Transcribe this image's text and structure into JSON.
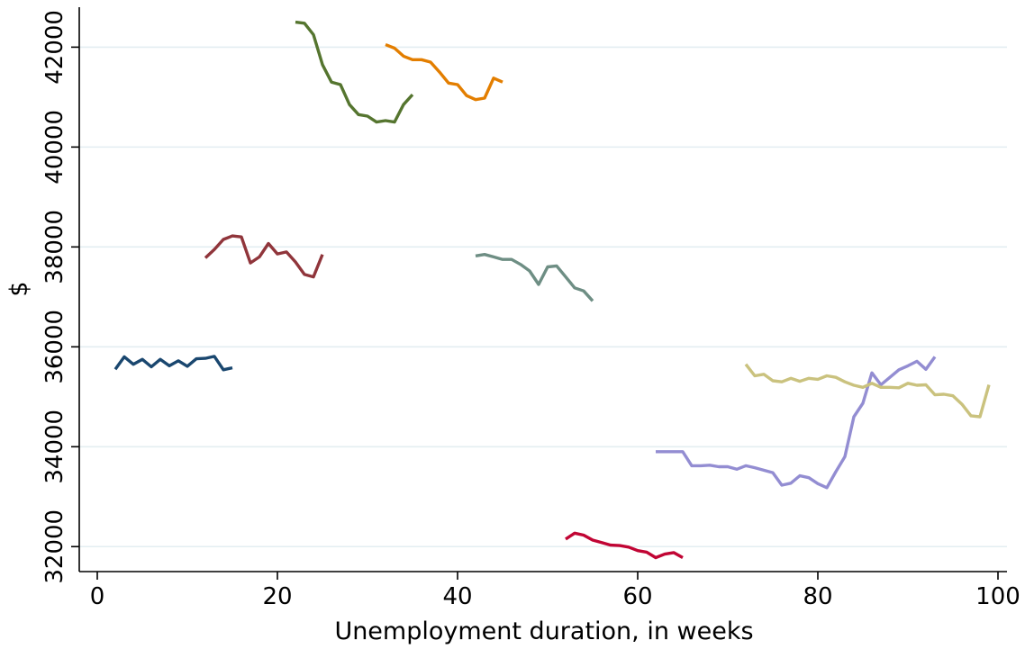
{
  "chart_data": {
    "type": "line",
    "title": "",
    "xlabel": "Unemployment duration, in weeks",
    "ylabel": "$",
    "xlim": [
      -2,
      101
    ],
    "ylim": [
      31500,
      42800
    ],
    "x_ticks": [
      0,
      20,
      40,
      60,
      80,
      100
    ],
    "y_ticks": [
      32000,
      34000,
      36000,
      38000,
      40000,
      42000
    ],
    "grid": true,
    "legend": "none",
    "series": [
      {
        "color": "#1a476f",
        "x": [
          2,
          3,
          4,
          5,
          6,
          7,
          8,
          9,
          10,
          11,
          12,
          13,
          14,
          15
        ],
        "y": [
          35550,
          35800,
          35650,
          35750,
          35600,
          35750,
          35620,
          35720,
          35610,
          35760,
          35770,
          35810,
          35540,
          35580
        ]
      },
      {
        "color": "#90353b",
        "x": [
          12,
          13,
          14,
          15,
          16,
          17,
          18,
          19,
          20,
          21,
          22,
          23,
          24,
          25
        ],
        "y": [
          37780,
          37950,
          38150,
          38220,
          38200,
          37680,
          37800,
          38070,
          37860,
          37900,
          37700,
          37450,
          37400,
          37850
        ]
      },
      {
        "color": "#55752f",
        "x": [
          22,
          23,
          24,
          25,
          26,
          27,
          28,
          29,
          30,
          31,
          32,
          33,
          34,
          35
        ],
        "y": [
          42500,
          42480,
          42250,
          41650,
          41300,
          41250,
          40850,
          40650,
          40620,
          40500,
          40530,
          40500,
          40850,
          41050
        ]
      },
      {
        "color": "#e37e00",
        "x": [
          32,
          33,
          34,
          35,
          36,
          37,
          38,
          39,
          40,
          41,
          42,
          43,
          44,
          45
        ],
        "y": [
          42050,
          41980,
          41820,
          41750,
          41750,
          41700,
          41500,
          41280,
          41250,
          41030,
          40950,
          40980,
          41380,
          41300
        ]
      },
      {
        "color": "#6e8e84",
        "x": [
          42,
          43,
          44,
          45,
          46,
          47,
          48,
          49,
          50,
          51,
          52,
          53,
          54,
          55
        ],
        "y": [
          37820,
          37850,
          37800,
          37750,
          37750,
          37650,
          37520,
          37250,
          37600,
          37620,
          37400,
          37180,
          37120,
          36920
        ]
      },
      {
        "color": "#c10534",
        "x": [
          52,
          53,
          54,
          55,
          56,
          57,
          58,
          59,
          60,
          61,
          62,
          63,
          64,
          65
        ],
        "y": [
          32150,
          32270,
          32230,
          32130,
          32080,
          32030,
          32020,
          31990,
          31920,
          31890,
          31780,
          31850,
          31880,
          31780
        ]
      },
      {
        "color": "#938dd2",
        "x": [
          62,
          63,
          64,
          65,
          66,
          67,
          68,
          69,
          70,
          71,
          72,
          73,
          74,
          75,
          76,
          77,
          78,
          79,
          80,
          81,
          82,
          83,
          84,
          85,
          86,
          87,
          88,
          89,
          90,
          91,
          92,
          93
        ],
        "y": [
          33900,
          33900,
          33900,
          33900,
          33620,
          33620,
          33630,
          33600,
          33600,
          33550,
          33620,
          33580,
          33530,
          33480,
          33230,
          33270,
          33420,
          33380,
          33260,
          33180,
          33500,
          33800,
          34600,
          34870,
          35480,
          35240,
          35390,
          35540,
          35620,
          35710,
          35550,
          35800
        ]
      },
      {
        "color": "#cac27e",
        "x": [
          72,
          73,
          74,
          75,
          76,
          77,
          78,
          79,
          80,
          81,
          82,
          83,
          84,
          85,
          86,
          87,
          88,
          89,
          90,
          91,
          92,
          93,
          94,
          95,
          96,
          97,
          98,
          99
        ],
        "y": [
          35650,
          35420,
          35450,
          35320,
          35300,
          35370,
          35310,
          35370,
          35350,
          35420,
          35390,
          35300,
          35230,
          35190,
          35270,
          35190,
          35190,
          35180,
          35270,
          35230,
          35240,
          35040,
          35050,
          35020,
          34850,
          34620,
          34600,
          35240
        ]
      }
    ]
  }
}
